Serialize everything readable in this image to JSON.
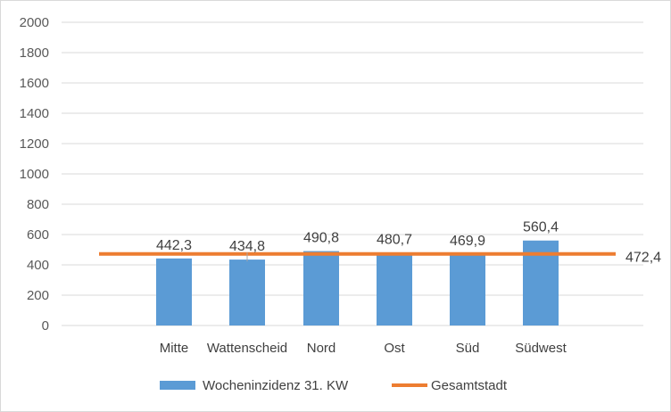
{
  "chart_data": {
    "type": "bar",
    "categories": [
      "Mitte",
      "Wattenscheid",
      "Nord",
      "Ost",
      "Süd",
      "Südwest"
    ],
    "series": [
      {
        "name": "Wocheninzidenz 31. KW",
        "kind": "bar",
        "color": "#5b9bd5",
        "values": [
          442.3,
          434.8,
          490.8,
          480.7,
          469.9,
          560.4
        ],
        "labels": [
          "442,3",
          "434,8",
          "490,8",
          "480,7",
          "469,9",
          "560,4"
        ]
      },
      {
        "name": "Gesamtstadt",
        "kind": "line",
        "color": "#ed7d31",
        "value": 472.4,
        "label": "472,4"
      }
    ],
    "yticks": [
      "0",
      "200",
      "400",
      "600",
      "800",
      "1000",
      "1200",
      "1400",
      "1600",
      "1800",
      "2000"
    ],
    "ylim": [
      0,
      2000
    ],
    "grid": true,
    "legend": "bottom"
  }
}
